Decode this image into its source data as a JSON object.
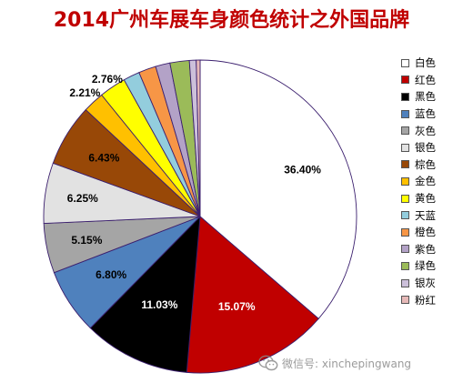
{
  "title": "2014广州车展车身颜色统计之外国品牌",
  "chart_data": {
    "type": "pie",
    "title": "2014广州车展车身颜色统计之外国品牌",
    "slices": [
      {
        "name": "白色",
        "value": 36.4,
        "label": "36.40%",
        "color": "#ffffff"
      },
      {
        "name": "红色",
        "value": 15.07,
        "label": "15.07%",
        "color": "#c00000"
      },
      {
        "name": "黑色",
        "value": 11.03,
        "label": "11.03%",
        "color": "#000000"
      },
      {
        "name": "蓝色",
        "value": 6.8,
        "label": "6.80%",
        "color": "#4f81bd"
      },
      {
        "name": "灰色",
        "value": 5.15,
        "label": "5.15%",
        "color": "#a5a5a5"
      },
      {
        "name": "银色",
        "value": 6.25,
        "label": "6.25%",
        "color": "#e2e2e2"
      },
      {
        "name": "棕色",
        "value": 6.43,
        "label": "6.43%",
        "color": "#984807"
      },
      {
        "name": "金色",
        "value": 2.21,
        "label": "2.21%",
        "color": "#ffc000"
      },
      {
        "name": "黄色",
        "value": 2.76,
        "label": "2.76%",
        "color": "#ffff00"
      },
      {
        "name": "天蓝",
        "value": 1.7,
        "label": "",
        "color": "#93cddd"
      },
      {
        "name": "橙色",
        "value": 1.8,
        "label": "",
        "color": "#f79646"
      },
      {
        "name": "紫色",
        "value": 1.5,
        "label": "",
        "color": "#b3a2c7"
      },
      {
        "name": "绿色",
        "value": 2.0,
        "label": "",
        "color": "#9bbb59"
      },
      {
        "name": "银灰",
        "value": 0.7,
        "label": "",
        "color": "#ccc0da"
      },
      {
        "name": "粉红",
        "value": 0.4,
        "label": "",
        "color": "#e6b9b8"
      }
    ],
    "legend_position": "right"
  },
  "watermark": {
    "text": "微信号: xinchepingwang",
    "icon": "wechat-icon"
  }
}
